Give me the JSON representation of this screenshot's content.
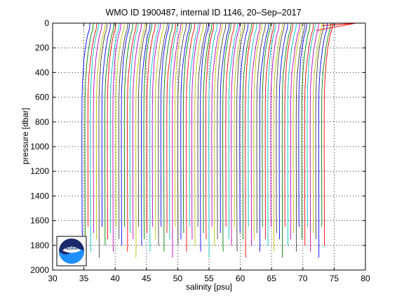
{
  "chart_data": {
    "type": "line",
    "title": "WMO ID 1900487, internal ID 1146, 20–Sep–2017",
    "xlabel": "salinity [psu]",
    "ylabel": "pressure [dbar]",
    "xlim": [
      30,
      80
    ],
    "ylim": [
      0,
      2000
    ],
    "y_reversed": true,
    "grid": true,
    "grid_style": "dotted",
    "x_ticks": [
      "30",
      "35",
      "40",
      "45",
      "50",
      "55",
      "60",
      "65",
      "70",
      "75",
      "80"
    ],
    "y_ticks": [
      "0",
      "200",
      "400",
      "600",
      "800",
      "1000",
      "1200",
      "1400",
      "1600",
      "1800",
      "2000"
    ],
    "series_colors": [
      "#0000ff",
      "#008000",
      "#ff0000",
      "#00bfbf",
      "#bf00bf",
      "#bfbf00",
      "#404040"
    ],
    "profile_offset_start": 34.8,
    "profile_offset_end": 73.6,
    "profile_offset_step": 0.45,
    "profile_shape": [
      {
        "p": 0,
        "s": 1.3
      },
      {
        "p": 50,
        "s": 1.2
      },
      {
        "p": 100,
        "s": 0.9
      },
      {
        "p": 200,
        "s": 0.55
      },
      {
        "p": 300,
        "s": 0.3
      },
      {
        "p": 400,
        "s": 0.12
      },
      {
        "p": 500,
        "s": 0.0
      },
      {
        "p": 600,
        "s": -0.06
      },
      {
        "p": 800,
        "s": -0.08
      },
      {
        "p": 1000,
        "s": -0.08
      },
      {
        "p": 1200,
        "s": -0.07
      },
      {
        "p": 1400,
        "s": -0.06
      },
      {
        "p": 1600,
        "s": -0.05
      },
      {
        "p": 1800,
        "s": -0.04
      }
    ],
    "profile_bottom_depths": [
      1750,
      1800,
      1650,
      1850,
      1700,
      1750,
      1900,
      1650,
      1800,
      1750,
      1700,
      1850,
      1650
    ],
    "surface_tail": {
      "p": 0,
      "s": 78.5
    }
  },
  "logo": {
    "text": "NOAA",
    "colors": {
      "navy": "#1a2a6c",
      "sky": "#1e90ff",
      "white": "#ffffff"
    }
  }
}
